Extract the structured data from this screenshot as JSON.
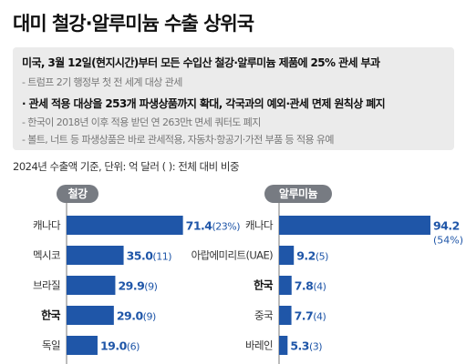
{
  "title": "대미 철강·알루미늄 수출 상위국",
  "info": [
    {
      "text": "미국, 3월 12일(현지시간)부터 모든 수입산 철강·알루미늄 제품에 25% 관세 부과",
      "style": "bold"
    },
    {
      "text": "- 트럼프 2기 행정부 첫 전 세계 대상 관세",
      "style": "sub"
    },
    {
      "text": "· 관세 적용 대상을 253개 파생상품까지 확대, 각국과의 예외·관세 면제 원칙상 폐지",
      "style": "bold"
    },
    {
      "text": "- 한국이 2018년 이후 적용 받던 연 263만t 면세 쿼터도 폐지",
      "style": "sub"
    },
    {
      "text": "- 볼트, 너트 등 파생상품은 바로 관세적용, 자동차·항공기·가전 부품 등 적용 유예",
      "style": "sub"
    }
  ],
  "basis": "2024년 수출액 기준, 단위: 억 달러  ( ): 전체 대비 비중",
  "colors": {
    "bar": "#1f56a8",
    "pill": "#777b82",
    "box": "#ebebeb"
  },
  "chart_data": [
    {
      "type": "bar",
      "orientation": "horizontal",
      "title": "철강",
      "categories": [
        "캐나다",
        "멕시코",
        "브라질",
        "한국",
        "독일"
      ],
      "values": [
        71.4,
        35.0,
        29.9,
        29.0,
        19.0
      ],
      "value_labels": [
        "71.4",
        "35.0",
        "29.9",
        "29.0",
        "19.0"
      ],
      "shares": [
        "(23%)",
        "(11)",
        "(9)",
        "(9)",
        "(6)"
      ],
      "highlight": "한국",
      "xlim": [
        0,
        80
      ]
    },
    {
      "type": "bar",
      "orientation": "horizontal",
      "title": "알루미늄",
      "categories": [
        "캐나다",
        "아랍에미리트(UAE)",
        "한국",
        "중국",
        "바레인"
      ],
      "values": [
        94.2,
        9.2,
        7.8,
        7.7,
        5.3
      ],
      "value_labels": [
        "94.2",
        "9.2",
        "7.8",
        "7.7",
        "5.3"
      ],
      "shares": [
        "(54%)",
        "(5)",
        "(4)",
        "(4)",
        "(3)"
      ],
      "highlight": "한국",
      "xlim": [
        0,
        105
      ]
    }
  ]
}
